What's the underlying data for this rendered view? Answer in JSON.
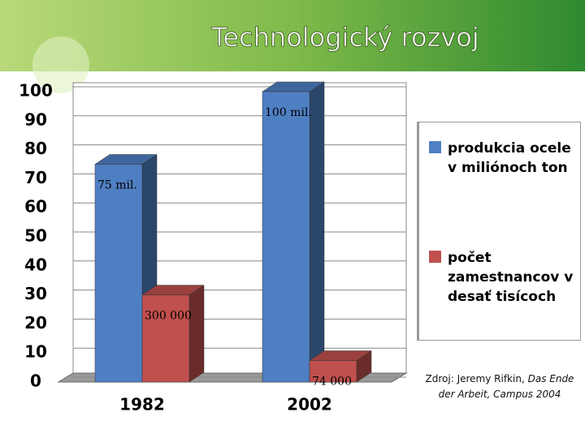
{
  "chart_data": {
    "type": "bar",
    "title": "Technologický rozvoj",
    "categories": [
      "1982",
      "2002"
    ],
    "series": [
      {
        "name": "produkcia ocele v miliónoch ton",
        "color": "#4f7fc3",
        "values": [
          75,
          100
        ],
        "value_labels": [
          "75 mil.",
          "100 mil."
        ]
      },
      {
        "name": "počet zamestnancov v desať tisícoch",
        "color": "#c0504d",
        "values": [
          30,
          7.4
        ],
        "value_labels": [
          "300 000",
          "74 000"
        ]
      }
    ],
    "ylim": [
      0,
      100
    ],
    "yticks": [
      0,
      10,
      20,
      30,
      40,
      50,
      60,
      70,
      80,
      90,
      100
    ],
    "grid": true,
    "source": [
      "Zdroj: Jeremy Rifkin,",
      "Das Ende der Arbeit, Campus 2004"
    ]
  }
}
